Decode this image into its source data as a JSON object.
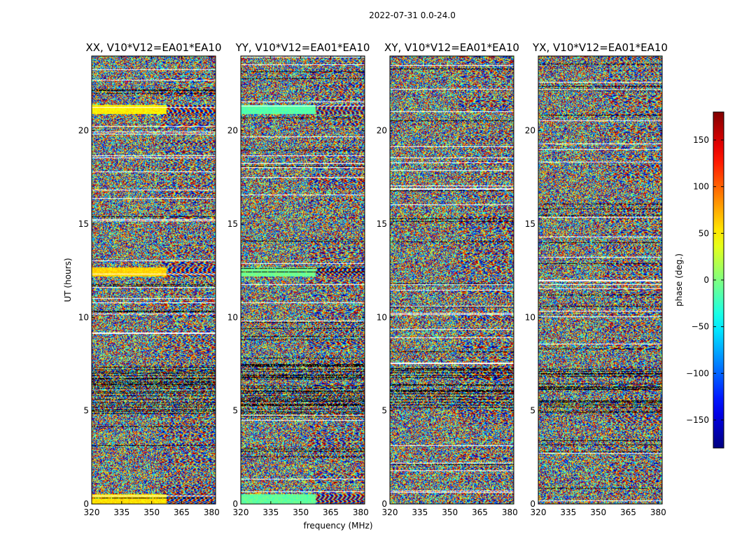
{
  "figure": {
    "suptitle": "2022-07-31 0.0-24.0"
  },
  "chart_data": [
    {
      "type": "heatmap",
      "title": "XX, V10*V12=EA01*EA10",
      "xlabel": "",
      "ylabel": "UT (hours)",
      "xlim": [
        320,
        382
      ],
      "ylim": [
        0,
        24
      ],
      "xticks": [
        320,
        335,
        350,
        365,
        380
      ],
      "yticks": [
        0,
        5,
        10,
        15,
        20
      ],
      "value_label": "phase (deg.)",
      "value_range": [
        -180,
        180
      ],
      "description_bands": [
        {
          "hours": [
            0.0,
            0.55
          ],
          "mean_phase": 55,
          "note": "coherent orange band"
        },
        {
          "hours": [
            12.2,
            12.7
          ],
          "mean_phase": 60,
          "note": "coherent orange band"
        },
        {
          "hours": [
            20.9,
            21.4
          ],
          "mean_phase": 50,
          "note": "coherent yellow-orange band"
        }
      ]
    },
    {
      "type": "heatmap",
      "title": "YY, V10*V12=EA01*EA10",
      "xlabel": "frequency (MHz)",
      "ylabel": "",
      "xlim": [
        320,
        382
      ],
      "ylim": [
        0,
        24
      ],
      "xticks": [
        320,
        335,
        350,
        365,
        380
      ],
      "yticks": [
        0,
        5,
        10,
        15,
        20
      ],
      "value_label": "phase (deg.)",
      "value_range": [
        -180,
        180
      ],
      "description_bands": [
        {
          "hours": [
            0.0,
            0.55
          ],
          "mean_phase": -10,
          "note": "coherent green band"
        },
        {
          "hours": [
            12.2,
            12.7
          ],
          "mean_phase": -5,
          "note": "coherent green band"
        },
        {
          "hours": [
            20.9,
            21.4
          ],
          "mean_phase": -15,
          "note": "coherent green band"
        }
      ]
    },
    {
      "type": "heatmap",
      "title": "XY, V10*V12=EA01*EA10",
      "xlabel": "",
      "ylabel": "",
      "xlim": [
        320,
        382
      ],
      "ylim": [
        0,
        24
      ],
      "xticks": [
        320,
        335,
        350,
        365,
        380
      ],
      "yticks": [
        0,
        5,
        10,
        15,
        20
      ],
      "value_label": "phase (deg.)",
      "value_range": [
        -180,
        180
      ],
      "description_bands": []
    },
    {
      "type": "heatmap",
      "title": "YX, V10*V12=EA01*EA10",
      "xlabel": "",
      "ylabel": "",
      "xlim": [
        320,
        382
      ],
      "ylim": [
        0,
        24
      ],
      "xticks": [
        320,
        335,
        350,
        365,
        380
      ],
      "yticks": [
        0,
        5,
        10,
        15,
        20
      ],
      "value_label": "phase (deg.)",
      "value_range": [
        -180,
        180
      ],
      "description_bands": []
    }
  ],
  "colorbar": {
    "label": "phase (deg.)",
    "ticks": [
      150,
      100,
      50,
      0,
      -50,
      -100,
      -150
    ],
    "range": [
      -180,
      180
    ],
    "colormap": "jet"
  },
  "colors": {
    "axes_frame": "#000000",
    "background": "#ffffff",
    "gap_row": "#ffffff",
    "dark_row": "#000000"
  }
}
